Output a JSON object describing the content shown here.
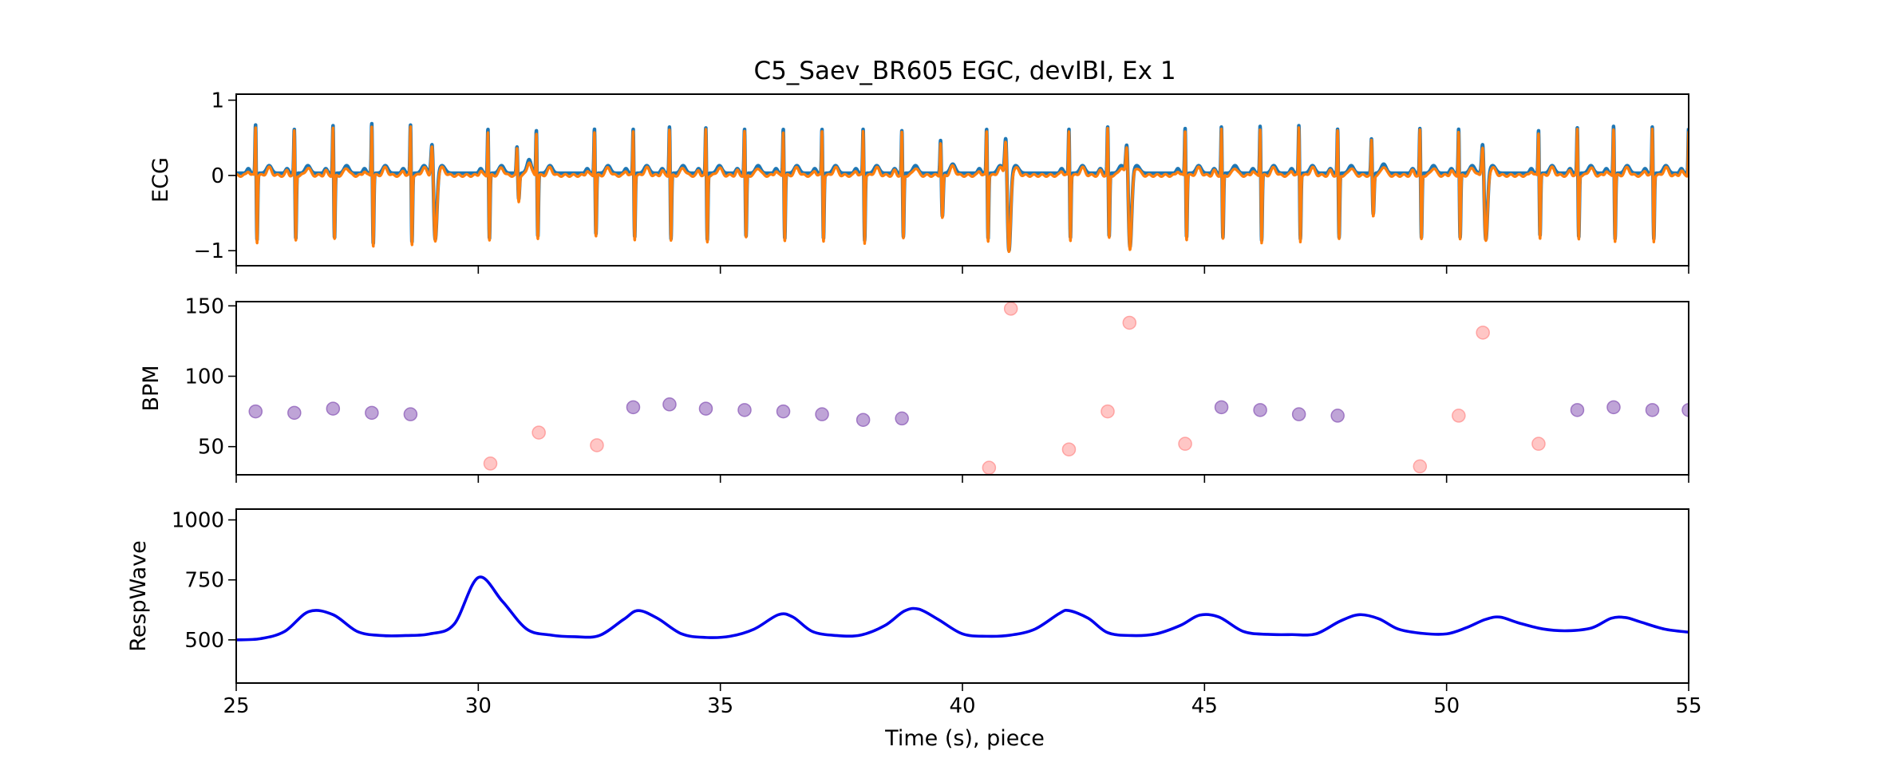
{
  "chart_data": {
    "title": "C5_Saev_BR605 EGC, devIBI, Ex 1",
    "xlabel": "Time (s), piece",
    "xlim": [
      25,
      55
    ],
    "xticks": [
      25,
      30,
      35,
      40,
      45,
      50,
      55
    ],
    "colors": {
      "ecg_raw": "#1f77b4",
      "ecg_filtered": "#ff7f0e",
      "bpm_normal": "#9467bd",
      "bpm_abnormal": "#ff9896",
      "resp": "#0000ee"
    },
    "panels": [
      {
        "type": "line",
        "ylabel": "ECG",
        "ylim": [
          -1.2,
          1.08
        ],
        "yticks": [
          -1,
          0,
          1
        ],
        "beats": [
          {
            "t": 25.4,
            "r": 0.68,
            "s": -0.9,
            "kind": "normal"
          },
          {
            "t": 26.2,
            "r": 0.62,
            "s": -0.88,
            "kind": "normal"
          },
          {
            "t": 27.0,
            "r": 0.67,
            "s": -0.87,
            "kind": "normal"
          },
          {
            "t": 27.8,
            "r": 0.7,
            "s": -0.95,
            "kind": "normal"
          },
          {
            "t": 28.6,
            "r": 0.68,
            "s": -0.93,
            "kind": "normal"
          },
          {
            "t": 29.05,
            "r": 0.55,
            "s": -0.9,
            "kind": "wide"
          },
          {
            "t": 30.2,
            "r": 0.62,
            "s": -0.88,
            "kind": "normal"
          },
          {
            "t": 30.8,
            "r": 0.38,
            "s": -0.35,
            "kind": "small"
          },
          {
            "t": 31.2,
            "r": 0.6,
            "s": -0.85,
            "kind": "normal"
          },
          {
            "t": 32.4,
            "r": 0.62,
            "s": -0.82,
            "kind": "normal"
          },
          {
            "t": 33.2,
            "r": 0.62,
            "s": -0.86,
            "kind": "normal"
          },
          {
            "t": 33.95,
            "r": 0.65,
            "s": -0.88,
            "kind": "normal"
          },
          {
            "t": 34.7,
            "r": 0.64,
            "s": -0.9,
            "kind": "normal"
          },
          {
            "t": 35.5,
            "r": 0.62,
            "s": -0.85,
            "kind": "normal"
          },
          {
            "t": 36.3,
            "r": 0.62,
            "s": -0.88,
            "kind": "normal"
          },
          {
            "t": 37.1,
            "r": 0.62,
            "s": -0.88,
            "kind": "normal"
          },
          {
            "t": 37.95,
            "r": 0.62,
            "s": -0.9,
            "kind": "normal"
          },
          {
            "t": 38.75,
            "r": 0.6,
            "s": -0.85,
            "kind": "normal"
          },
          {
            "t": 39.55,
            "r": 0.48,
            "s": -0.58,
            "kind": "small"
          },
          {
            "t": 40.5,
            "r": 0.62,
            "s": -0.88,
            "kind": "normal"
          },
          {
            "t": 40.9,
            "r": 0.65,
            "s": -1.05,
            "kind": "wide"
          },
          {
            "t": 42.2,
            "r": 0.62,
            "s": -0.87,
            "kind": "normal"
          },
          {
            "t": 43.0,
            "r": 0.65,
            "s": -0.85,
            "kind": "normal"
          },
          {
            "t": 43.4,
            "r": 0.55,
            "s": -1.0,
            "kind": "wide"
          },
          {
            "t": 44.6,
            "r": 0.63,
            "s": -0.86,
            "kind": "normal"
          },
          {
            "t": 45.35,
            "r": 0.65,
            "s": -0.86,
            "kind": "normal"
          },
          {
            "t": 46.15,
            "r": 0.66,
            "s": -0.9,
            "kind": "normal"
          },
          {
            "t": 46.95,
            "r": 0.67,
            "s": -0.88,
            "kind": "normal"
          },
          {
            "t": 47.75,
            "r": 0.62,
            "s": -0.86,
            "kind": "normal"
          },
          {
            "t": 48.45,
            "r": 0.5,
            "s": -0.55,
            "kind": "small"
          },
          {
            "t": 49.45,
            "r": 0.63,
            "s": -0.86,
            "kind": "normal"
          },
          {
            "t": 50.25,
            "r": 0.62,
            "s": -0.86,
            "kind": "normal"
          },
          {
            "t": 50.75,
            "r": 0.55,
            "s": -0.9,
            "kind": "wide"
          },
          {
            "t": 51.9,
            "r": 0.6,
            "s": -0.84,
            "kind": "normal"
          },
          {
            "t": 52.7,
            "r": 0.64,
            "s": -0.86,
            "kind": "normal"
          },
          {
            "t": 53.45,
            "r": 0.66,
            "s": -0.88,
            "kind": "normal"
          },
          {
            "t": 54.25,
            "r": 0.65,
            "s": -0.88,
            "kind": "normal"
          },
          {
            "t": 55.0,
            "r": 0.62,
            "s": -0.5,
            "kind": "normal"
          }
        ]
      },
      {
        "type": "scatter",
        "ylabel": "BPM",
        "ylim": [
          30,
          153
        ],
        "yticks": [
          50,
          100,
          150
        ],
        "points": [
          {
            "x": 25.4,
            "y": 75,
            "group": "normal"
          },
          {
            "x": 26.2,
            "y": 74,
            "group": "normal"
          },
          {
            "x": 27.0,
            "y": 77,
            "group": "normal"
          },
          {
            "x": 27.8,
            "y": 74,
            "group": "normal"
          },
          {
            "x": 28.6,
            "y": 73,
            "group": "normal"
          },
          {
            "x": 30.25,
            "y": 38,
            "group": "abnormal"
          },
          {
            "x": 31.25,
            "y": 60,
            "group": "abnormal"
          },
          {
            "x": 32.45,
            "y": 51,
            "group": "abnormal"
          },
          {
            "x": 33.2,
            "y": 78,
            "group": "normal"
          },
          {
            "x": 33.95,
            "y": 80,
            "group": "normal"
          },
          {
            "x": 34.7,
            "y": 77,
            "group": "normal"
          },
          {
            "x": 35.5,
            "y": 76,
            "group": "normal"
          },
          {
            "x": 36.3,
            "y": 75,
            "group": "normal"
          },
          {
            "x": 37.1,
            "y": 73,
            "group": "normal"
          },
          {
            "x": 37.95,
            "y": 69,
            "group": "normal"
          },
          {
            "x": 38.75,
            "y": 70,
            "group": "normal"
          },
          {
            "x": 40.55,
            "y": 35,
            "group": "abnormal"
          },
          {
            "x": 41.0,
            "y": 148,
            "group": "abnormal"
          },
          {
            "x": 42.2,
            "y": 48,
            "group": "abnormal"
          },
          {
            "x": 43.0,
            "y": 75,
            "group": "abnormal"
          },
          {
            "x": 43.45,
            "y": 138,
            "group": "abnormal"
          },
          {
            "x": 44.6,
            "y": 52,
            "group": "abnormal"
          },
          {
            "x": 45.35,
            "y": 78,
            "group": "normal"
          },
          {
            "x": 46.15,
            "y": 76,
            "group": "normal"
          },
          {
            "x": 46.95,
            "y": 73,
            "group": "normal"
          },
          {
            "x": 47.75,
            "y": 72,
            "group": "normal"
          },
          {
            "x": 49.45,
            "y": 36,
            "group": "abnormal"
          },
          {
            "x": 50.25,
            "y": 72,
            "group": "abnormal"
          },
          {
            "x": 50.75,
            "y": 131,
            "group": "abnormal"
          },
          {
            "x": 51.9,
            "y": 52,
            "group": "abnormal"
          },
          {
            "x": 52.7,
            "y": 76,
            "group": "normal"
          },
          {
            "x": 53.45,
            "y": 78,
            "group": "normal"
          },
          {
            "x": 54.25,
            "y": 76,
            "group": "normal"
          },
          {
            "x": 55.0,
            "y": 76,
            "group": "normal"
          }
        ]
      },
      {
        "type": "line",
        "ylabel": "RespWave",
        "ylim": [
          320,
          1045
        ],
        "yticks": [
          500,
          750,
          1000
        ],
        "x": [
          25,
          25.5,
          26.0,
          26.5,
          27.0,
          27.5,
          28.0,
          28.5,
          29.0,
          29.5,
          30.0,
          30.5,
          31.0,
          31.5,
          32.0,
          32.5,
          33.0,
          33.3,
          33.7,
          34.2,
          34.7,
          35.2,
          35.7,
          36.2,
          36.5,
          36.9,
          37.4,
          37.9,
          38.4,
          38.8,
          39.1,
          39.5,
          40.0,
          40.5,
          41.0,
          41.5,
          42.0,
          42.2,
          42.6,
          43.0,
          43.5,
          44.0,
          44.5,
          44.9,
          45.3,
          45.8,
          46.3,
          46.8,
          47.3,
          47.8,
          48.2,
          48.6,
          49.0,
          49.5,
          50.0,
          50.4,
          50.8,
          51.1,
          51.5,
          52.0,
          52.5,
          53.0,
          53.4,
          53.7,
          54.0,
          54.5,
          55.0
        ],
        "y": [
          500,
          505,
          535,
          618,
          605,
          535,
          518,
          518,
          525,
          565,
          760,
          660,
          545,
          520,
          513,
          518,
          585,
          622,
          590,
          525,
          510,
          515,
          545,
          605,
          595,
          535,
          518,
          520,
          560,
          620,
          628,
          585,
          525,
          515,
          520,
          545,
          610,
          622,
          590,
          530,
          518,
          525,
          560,
          603,
          595,
          535,
          523,
          522,
          525,
          578,
          605,
          588,
          545,
          527,
          525,
          550,
          585,
          595,
          570,
          545,
          538,
          550,
          590,
          593,
          575,
          545,
          532
        ]
      }
    ]
  }
}
